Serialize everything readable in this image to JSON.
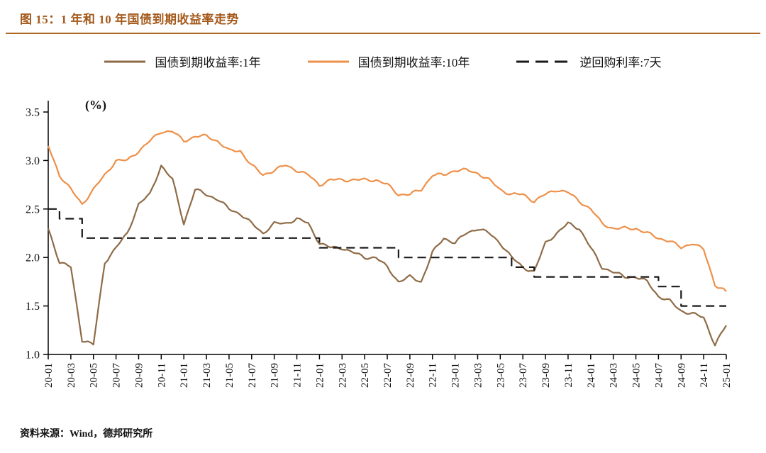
{
  "figure": {
    "title": "图 15：1 年和 10 年国债到期收益率走势",
    "source": "资料来源：Wind，德邦研究所"
  },
  "colors": {
    "title": "#a4591b",
    "rule": "#b06a28",
    "axis": "#000000"
  },
  "chart_data": {
    "type": "line",
    "title": "1 年和 10 年国债到期收益率走势",
    "ylabel": "(%)",
    "ylim": [
      1.0,
      3.5
    ],
    "yticks": [
      1.0,
      1.5,
      2.0,
      2.5,
      3.0,
      3.5
    ],
    "grid": false,
    "legend_position": "top",
    "x_tick_every": 2,
    "x": [
      "20-01",
      "20-02",
      "20-03",
      "20-04",
      "20-05",
      "20-06",
      "20-07",
      "20-08",
      "20-09",
      "20-10",
      "20-11",
      "20-12",
      "21-01",
      "21-02",
      "21-03",
      "21-04",
      "21-05",
      "21-06",
      "21-07",
      "21-08",
      "21-09",
      "21-10",
      "21-11",
      "21-12",
      "22-01",
      "22-02",
      "22-03",
      "22-04",
      "22-05",
      "22-06",
      "22-07",
      "22-08",
      "22-09",
      "22-10",
      "22-11",
      "22-12",
      "23-01",
      "23-02",
      "23-03",
      "23-04",
      "23-05",
      "23-06",
      "23-07",
      "23-08",
      "23-09",
      "23-10",
      "23-11",
      "23-12",
      "24-01",
      "24-02",
      "24-03",
      "24-04",
      "24-05",
      "24-06",
      "24-07",
      "24-08",
      "24-09",
      "24-10",
      "24-11",
      "24-12",
      "25-01"
    ],
    "series": [
      {
        "name": "国债到期收益率:1年",
        "color": "#8f6b47",
        "style": "solid",
        "values": [
          2.3,
          1.95,
          1.9,
          1.15,
          1.1,
          1.95,
          2.1,
          2.25,
          2.55,
          2.65,
          2.95,
          2.8,
          2.35,
          2.7,
          2.65,
          2.6,
          2.5,
          2.45,
          2.35,
          2.25,
          2.35,
          2.35,
          2.4,
          2.35,
          2.15,
          2.1,
          2.1,
          2.05,
          2.0,
          2.0,
          1.9,
          1.75,
          1.8,
          1.75,
          2.05,
          2.2,
          2.15,
          2.25,
          2.3,
          2.25,
          2.15,
          2.0,
          1.9,
          1.85,
          2.15,
          2.25,
          2.35,
          2.3,
          2.1,
          1.9,
          1.85,
          1.8,
          1.8,
          1.75,
          1.6,
          1.55,
          1.45,
          1.42,
          1.38,
          1.1,
          1.3
        ]
      },
      {
        "name": "国债到期收益率:10年",
        "color": "#ee9049",
        "style": "solid",
        "values": [
          3.15,
          2.85,
          2.7,
          2.55,
          2.7,
          2.85,
          3.0,
          3.0,
          3.1,
          3.2,
          3.3,
          3.3,
          3.2,
          3.25,
          3.25,
          3.2,
          3.1,
          3.1,
          2.95,
          2.85,
          2.9,
          2.95,
          2.9,
          2.85,
          2.75,
          2.8,
          2.8,
          2.8,
          2.8,
          2.8,
          2.75,
          2.65,
          2.65,
          2.7,
          2.85,
          2.85,
          2.9,
          2.9,
          2.87,
          2.8,
          2.7,
          2.65,
          2.65,
          2.58,
          2.65,
          2.7,
          2.67,
          2.58,
          2.5,
          2.35,
          2.3,
          2.3,
          2.3,
          2.25,
          2.2,
          2.17,
          2.1,
          2.15,
          2.08,
          1.72,
          1.65
        ]
      },
      {
        "name": "逆回购利率:7天",
        "color": "#1a1a1a",
        "style": "dashed",
        "step": true,
        "dash": "12 7",
        "values": [
          2.5,
          2.4,
          2.4,
          2.2,
          2.2,
          2.2,
          2.2,
          2.2,
          2.2,
          2.2,
          2.2,
          2.2,
          2.2,
          2.2,
          2.2,
          2.2,
          2.2,
          2.2,
          2.2,
          2.2,
          2.2,
          2.2,
          2.2,
          2.2,
          2.1,
          2.1,
          2.1,
          2.1,
          2.1,
          2.1,
          2.1,
          2.0,
          2.0,
          2.0,
          2.0,
          2.0,
          2.0,
          2.0,
          2.0,
          2.0,
          2.0,
          1.9,
          1.9,
          1.8,
          1.8,
          1.8,
          1.8,
          1.8,
          1.8,
          1.8,
          1.8,
          1.8,
          1.8,
          1.8,
          1.7,
          1.7,
          1.5,
          1.5,
          1.5,
          1.5,
          1.5
        ]
      }
    ]
  }
}
